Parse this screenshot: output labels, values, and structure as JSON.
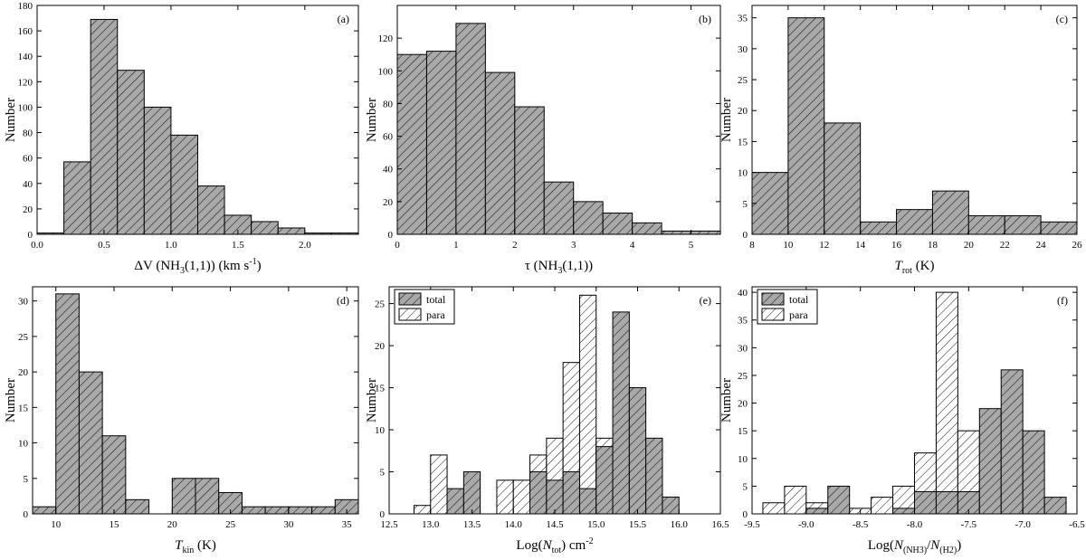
{
  "chart_data": [
    {
      "type": "bar",
      "id": "a",
      "panel_label": "(a)",
      "ylabel": "Number",
      "xlabel_parts": [
        {
          "text": "ΔV (NH",
          "style": "normal"
        },
        {
          "text": "3",
          "style": "sub"
        },
        {
          "text": "(1,1))  (km s",
          "style": "normal"
        },
        {
          "text": "-1",
          "style": "sup"
        },
        {
          "text": ")",
          "style": "normal"
        }
      ],
      "xlim": [
        0,
        2.4
      ],
      "ylim": [
        0,
        180
      ],
      "xticks": [
        0,
        0.5,
        1.0,
        1.5,
        2.0
      ],
      "xtick_labels": [
        "0.0",
        "0.5",
        "1.0",
        "1.5",
        "2.0"
      ],
      "yticks": [
        0,
        20,
        40,
        60,
        80,
        100,
        120,
        140,
        160,
        180
      ],
      "ytick_labels": [
        "0",
        "20",
        "40",
        "60",
        "80",
        "100",
        "120",
        "140",
        "160",
        "180"
      ],
      "series": [
        {
          "name": "",
          "bin_edges": [
            0,
            0.2,
            0.4,
            0.6,
            0.8,
            1.0,
            1.2,
            1.4,
            1.6,
            1.8,
            2.0,
            2.2,
            2.4
          ],
          "values": [
            1,
            57,
            169,
            129,
            100,
            78,
            38,
            15,
            10,
            5,
            1,
            1
          ],
          "fill": "gray-hatch"
        }
      ],
      "legend": []
    },
    {
      "type": "bar",
      "id": "b",
      "panel_label": "(b)",
      "ylabel": "Number",
      "xlabel_parts": [
        {
          "text": "τ (NH",
          "style": "normal"
        },
        {
          "text": "3",
          "style": "sub"
        },
        {
          "text": "(1,1))",
          "style": "normal"
        }
      ],
      "xlim": [
        0,
        5.5
      ],
      "ylim": [
        0,
        140
      ],
      "xticks": [
        0,
        1,
        2,
        3,
        4,
        5
      ],
      "xtick_labels": [
        "0",
        "1",
        "2",
        "3",
        "4",
        "5"
      ],
      "yticks": [
        0,
        20,
        40,
        60,
        80,
        100,
        120
      ],
      "ytick_labels": [
        "0",
        "20",
        "40",
        "60",
        "80",
        "100",
        "120"
      ],
      "series": [
        {
          "name": "",
          "bin_edges": [
            0,
            0.5,
            1.0,
            1.5,
            2.0,
            2.5,
            3.0,
            3.5,
            4.0,
            4.5,
            5.0,
            5.5
          ],
          "values": [
            110,
            112,
            129,
            99,
            78,
            32,
            20,
            13,
            7,
            2,
            2
          ],
          "fill": "gray-hatch"
        }
      ],
      "legend": []
    },
    {
      "type": "bar",
      "id": "c",
      "panel_label": "(c)",
      "ylabel": "Number",
      "xlabel_parts": [
        {
          "text": "T",
          "style": "italic"
        },
        {
          "text": "rot",
          "style": "sub"
        },
        {
          "text": "  (K)",
          "style": "normal"
        }
      ],
      "xlim": [
        8,
        26
      ],
      "ylim": [
        0,
        37
      ],
      "xticks": [
        8,
        10,
        12,
        14,
        16,
        18,
        20,
        22,
        24,
        26
      ],
      "xtick_labels": [
        "8",
        "10",
        "12",
        "14",
        "16",
        "18",
        "20",
        "22",
        "24",
        "26"
      ],
      "yticks": [
        0,
        5,
        10,
        15,
        20,
        25,
        30,
        35
      ],
      "ytick_labels": [
        "0",
        "5",
        "10",
        "15",
        "20",
        "25",
        "30",
        "35"
      ],
      "series": [
        {
          "name": "",
          "bin_edges": [
            8,
            10,
            12,
            14,
            16,
            18,
            20,
            22,
            24,
            26
          ],
          "values": [
            10,
            35,
            18,
            2,
            4,
            7,
            3,
            3,
            2
          ],
          "fill": "gray-hatch"
        }
      ],
      "legend": []
    },
    {
      "type": "bar",
      "id": "d",
      "panel_label": "(d)",
      "ylabel": "Number",
      "xlabel_parts": [
        {
          "text": "T",
          "style": "italic"
        },
        {
          "text": "kin",
          "style": "sub"
        },
        {
          "text": " (K)",
          "style": "normal"
        }
      ],
      "xlim": [
        8,
        36
      ],
      "ylim": [
        0,
        32
      ],
      "xticks": [
        10,
        15,
        20,
        25,
        30,
        35
      ],
      "xtick_labels": [
        "10",
        "15",
        "20",
        "25",
        "30",
        "35"
      ],
      "yticks": [
        0,
        5,
        10,
        15,
        20,
        25,
        30
      ],
      "ytick_labels": [
        "0",
        "5",
        "10",
        "15",
        "20",
        "25",
        "30"
      ],
      "series": [
        {
          "name": "",
          "bin_edges": [
            8,
            10,
            12,
            14,
            16,
            18,
            20,
            22,
            24,
            26,
            28,
            30,
            32,
            34,
            36
          ],
          "values": [
            1,
            31,
            20,
            11,
            2,
            0,
            5,
            5,
            3,
            1,
            1,
            1,
            1,
            2
          ],
          "fill": "gray-hatch"
        }
      ],
      "legend": []
    },
    {
      "type": "bar",
      "id": "e",
      "panel_label": "(e)",
      "ylabel": "Number",
      "xlabel_parts": [
        {
          "text": "Log(",
          "style": "normal"
        },
        {
          "text": "N",
          "style": "italic"
        },
        {
          "text": "tot",
          "style": "sub"
        },
        {
          "text": ")  cm",
          "style": "normal"
        },
        {
          "text": "-2",
          "style": "sup"
        }
      ],
      "xlim": [
        12.5,
        16.5
      ],
      "ylim": [
        0,
        27
      ],
      "xticks": [
        12.5,
        13.0,
        13.5,
        14.0,
        14.5,
        15.0,
        15.5,
        16.0,
        16.5
      ],
      "xtick_labels": [
        "12.5",
        "13.0",
        "13.5",
        "14.0",
        "14.5",
        "15.0",
        "15.5",
        "16.0",
        "16.5"
      ],
      "yticks": [
        0,
        5,
        10,
        15,
        20,
        25
      ],
      "ytick_labels": [
        "0",
        "5",
        "10",
        "15",
        "20",
        "25"
      ],
      "series": [
        {
          "name": "para",
          "bin_edges": [
            12.8,
            13.0,
            13.2,
            13.4,
            13.6,
            13.8,
            14.0,
            14.2,
            14.4,
            14.6,
            14.8,
            15.0,
            15.2,
            15.4,
            15.6,
            15.8,
            16.0
          ],
          "values": [
            1,
            7,
            0,
            0,
            0,
            4,
            4,
            7,
            9,
            18,
            26,
            9,
            0,
            0,
            0,
            0
          ],
          "fill": "white-hatch"
        },
        {
          "name": "total",
          "bin_edges": [
            12.8,
            13.0,
            13.2,
            13.4,
            13.6,
            13.8,
            14.0,
            14.2,
            14.4,
            14.6,
            14.8,
            15.0,
            15.2,
            15.4,
            15.6,
            15.8,
            16.0
          ],
          "values": [
            0,
            0,
            3,
            5,
            0,
            0,
            0,
            5,
            4,
            5,
            3,
            8,
            24,
            15,
            9,
            2
          ],
          "fill": "gray-hatch"
        }
      ],
      "legend": [
        "total",
        "para"
      ]
    },
    {
      "type": "bar",
      "id": "f",
      "panel_label": "(f)",
      "ylabel": "Number",
      "xlabel_parts": [
        {
          "text": "Log(",
          "style": "normal"
        },
        {
          "text": "N",
          "style": "italic"
        },
        {
          "text": "(NH3)",
          "style": "sub"
        },
        {
          "text": "/",
          "style": "normal"
        },
        {
          "text": "N",
          "style": "italic"
        },
        {
          "text": "(H2)",
          "style": "sub"
        },
        {
          "text": ")",
          "style": "normal"
        }
      ],
      "xlim": [
        -9.5,
        -6.5
      ],
      "ylim": [
        0,
        41
      ],
      "xticks": [
        -9.5,
        -9.0,
        -8.5,
        -8.0,
        -7.5,
        -7.0,
        -6.5
      ],
      "xtick_labels": [
        "-9.5",
        "-9.0",
        "-8.5",
        "-8.0",
        "-7.5",
        "-7.0",
        "-6.5"
      ],
      "yticks": [
        0,
        5,
        10,
        15,
        20,
        25,
        30,
        35,
        40
      ],
      "ytick_labels": [
        "0",
        "5",
        "10",
        "15",
        "20",
        "25",
        "30",
        "35",
        "40"
      ],
      "series": [
        {
          "name": "para",
          "bin_edges": [
            -9.4,
            -9.2,
            -9.0,
            -8.8,
            -8.6,
            -8.4,
            -8.2,
            -8.0,
            -7.8,
            -7.6,
            -7.4,
            -7.2,
            -7.0,
            -6.8,
            -6.6
          ],
          "values": [
            2,
            5,
            2,
            0,
            1,
            3,
            5,
            11,
            40,
            15,
            0,
            0,
            0,
            0
          ],
          "fill": "white-hatch"
        },
        {
          "name": "total",
          "bin_edges": [
            -9.4,
            -9.2,
            -9.0,
            -8.8,
            -8.6,
            -8.4,
            -8.2,
            -8.0,
            -7.8,
            -7.6,
            -7.4,
            -7.2,
            -7.0,
            -6.8,
            -6.6
          ],
          "values": [
            0,
            0,
            1,
            5,
            0,
            0,
            1,
            4,
            4,
            4,
            19,
            26,
            15,
            3
          ],
          "fill": "gray-hatch"
        }
      ],
      "legend": [
        "total",
        "para"
      ]
    }
  ]
}
